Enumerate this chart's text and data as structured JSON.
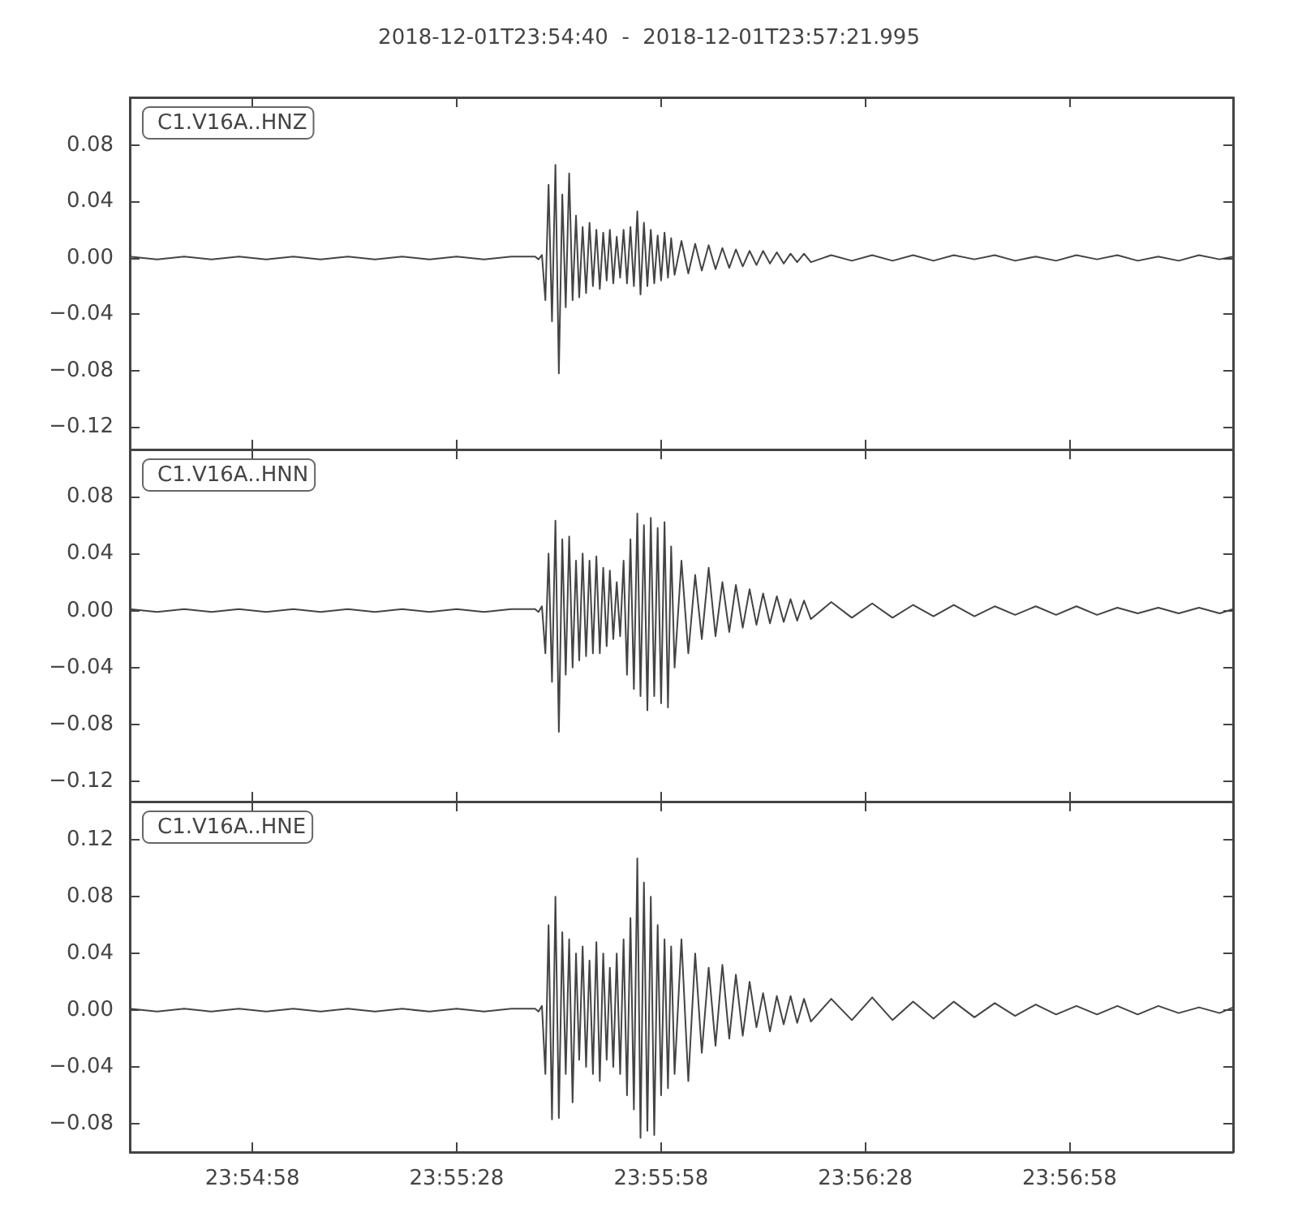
{
  "chart_data": [
    {
      "type": "line",
      "title": "2018-12-01T23:54:40  -  2018-12-01T23:57:21.995",
      "legend": "top left",
      "grid": false,
      "marker": "none",
      "line_style": "solid",
      "tick_labels": "y",
      "x": [
        23.91111,
        23.91222,
        23.91333,
        23.91444,
        23.91556,
        23.91667,
        23.91778,
        23.91889,
        23.92,
        23.92111,
        23.92222,
        23.92333,
        23.92444,
        23.92556,
        23.92667,
        23.92764,
        23.92778,
        23.92792,
        23.92806,
        23.92819,
        23.92833,
        23.92847,
        23.92861,
        23.92875,
        23.92889,
        23.92903,
        23.92917,
        23.92931,
        23.92944,
        23.92958,
        23.92972,
        23.92986,
        23.93,
        23.93014,
        23.93028,
        23.93042,
        23.93056,
        23.93069,
        23.93083,
        23.93097,
        23.93111,
        23.93125,
        23.93139,
        23.93153,
        23.93167,
        23.93181,
        23.93194,
        23.93208,
        23.93222,
        23.93236,
        23.9325,
        23.93264,
        23.93278,
        23.93292,
        23.93306,
        23.93319,
        23.93333,
        23.93361,
        23.93389,
        23.93417,
        23.93444,
        23.93472,
        23.935,
        23.93528,
        23.93556,
        23.93583,
        23.93611,
        23.93639,
        23.93667,
        23.93694,
        23.93722,
        23.9375,
        23.93778,
        23.93806,
        23.93833,
        23.93861,
        23.93889,
        23.93972,
        23.94056,
        23.94139,
        23.94222,
        23.94306,
        23.94389,
        23.94472,
        23.94556,
        23.94639,
        23.94722,
        23.94806,
        23.94889,
        23.94972,
        23.95056,
        23.95139,
        23.95222,
        23.95306,
        23.95389,
        23.95472,
        23.95556,
        23.95611
      ],
      "xlim": [
        23.91111,
        23.95611
      ],
      "xticks": [
        {
          "value": 23.91611,
          "label": null
        },
        {
          "value": 23.92444,
          "label": null
        },
        {
          "value": 23.93278,
          "label": null
        },
        {
          "value": 23.94111,
          "label": null
        },
        {
          "value": 23.94944,
          "label": null
        }
      ],
      "ylim": [
        -0.136,
        0.114
      ],
      "yticks": [
        {
          "value": -0.12,
          "label": "−0.12"
        },
        {
          "value": -0.08,
          "label": "−0.08"
        },
        {
          "value": -0.04,
          "label": "−0.04"
        },
        {
          "value": 0,
          "label": "0.00"
        },
        0.04,
        0.08
      ],
      "series": [
        {
          "name": "C1.V16A..HNZ",
          "color": "#444444",
          "values": [
            0.001,
            -0.001,
            0.001,
            -0.001,
            0.001,
            -0.001,
            0.001,
            -0.001,
            0.001,
            -0.001,
            0.001,
            -0.001,
            0.001,
            -0.001,
            0.001,
            0.001,
            -0.001,
            0.002,
            -0.03,
            0.052,
            -0.045,
            0.066,
            -0.082,
            0.045,
            -0.035,
            0.06,
            -0.03,
            0.03,
            -0.028,
            0.022,
            -0.025,
            0.025,
            -0.02,
            0.02,
            -0.022,
            0.018,
            -0.016,
            0.02,
            -0.018,
            0.015,
            -0.014,
            0.02,
            -0.018,
            0.022,
            -0.02,
            0.033,
            -0.026,
            0.025,
            -0.02,
            0.02,
            -0.018,
            0.016,
            -0.016,
            0.018,
            -0.014,
            0.014,
            -0.012,
            0.012,
            -0.011,
            0.01,
            -0.009,
            0.009,
            -0.008,
            0.007,
            -0.007,
            0.006,
            -0.006,
            0.005,
            -0.005,
            0.005,
            -0.004,
            0.004,
            -0.004,
            0.003,
            -0.003,
            0.003,
            -0.003,
            0.002,
            -0.002,
            0.002,
            -0.002,
            0.002,
            -0.002,
            0.002,
            -0.001,
            0.002,
            -0.002,
            0.001,
            -0.002,
            0.002,
            -0.001,
            0.002,
            -0.002,
            0.001,
            -0.002,
            0.002,
            -0.001,
            0.001
          ]
        }
      ]
    },
    {
      "type": "line",
      "legend": "top left",
      "grid": false,
      "marker": "none",
      "line_style": "solid",
      "tick_labels": "y",
      "x": [
        23.91111,
        23.91222,
        23.91333,
        23.91444,
        23.91556,
        23.91667,
        23.91778,
        23.91889,
        23.92,
        23.92111,
        23.92222,
        23.92333,
        23.92444,
        23.92556,
        23.92667,
        23.92764,
        23.92778,
        23.92792,
        23.92806,
        23.92819,
        23.92833,
        23.92847,
        23.92861,
        23.92875,
        23.92889,
        23.92903,
        23.92917,
        23.92931,
        23.92944,
        23.92958,
        23.92972,
        23.92986,
        23.93,
        23.93014,
        23.93028,
        23.93042,
        23.93056,
        23.93069,
        23.93083,
        23.93097,
        23.93111,
        23.93125,
        23.93139,
        23.93153,
        23.93167,
        23.93181,
        23.93194,
        23.93208,
        23.93222,
        23.93236,
        23.9325,
        23.93264,
        23.93278,
        23.93292,
        23.93306,
        23.93319,
        23.93333,
        23.93361,
        23.93389,
        23.93417,
        23.93444,
        23.93472,
        23.935,
        23.93528,
        23.93556,
        23.93583,
        23.93611,
        23.93639,
        23.93667,
        23.93694,
        23.93722,
        23.9375,
        23.93778,
        23.93806,
        23.93833,
        23.93861,
        23.93889,
        23.93972,
        23.94056,
        23.94139,
        23.94222,
        23.94306,
        23.94389,
        23.94472,
        23.94556,
        23.94639,
        23.94722,
        23.94806,
        23.94889,
        23.94972,
        23.95056,
        23.95139,
        23.95222,
        23.95306,
        23.95389,
        23.95472,
        23.95556,
        23.95611
      ],
      "xlim": [
        23.91111,
        23.95611
      ],
      "xticks": [
        {
          "value": 23.91611,
          "label": null
        },
        {
          "value": 23.92444,
          "label": null
        },
        {
          "value": 23.93278,
          "label": null
        },
        {
          "value": 23.94111,
          "label": null
        },
        {
          "value": 23.94944,
          "label": null
        }
      ],
      "ylim": [
        -0.134,
        0.113
      ],
      "yticks": [
        {
          "value": -0.12,
          "label": "−0.12"
        },
        {
          "value": -0.08,
          "label": "−0.08"
        },
        {
          "value": -0.04,
          "label": "−0.04"
        },
        {
          "value": 0,
          "label": "0.00"
        },
        0.04,
        0.08
      ],
      "series": [
        {
          "name": "C1.V16A..HNN",
          "color": "#444444",
          "values": [
            0.001,
            -0.001,
            0.001,
            -0.001,
            0.001,
            -0.001,
            0.001,
            -0.001,
            0.001,
            -0.001,
            0.001,
            -0.001,
            0.001,
            -0.001,
            0.001,
            0.001,
            -0.001,
            0.003,
            -0.03,
            0.04,
            -0.05,
            0.063,
            -0.085,
            0.05,
            -0.045,
            0.052,
            -0.04,
            0.035,
            -0.035,
            0.04,
            -0.032,
            0.035,
            -0.03,
            0.038,
            -0.03,
            0.03,
            -0.025,
            0.028,
            -0.02,
            0.02,
            -0.018,
            0.035,
            -0.045,
            0.05,
            -0.055,
            0.068,
            -0.06,
            0.06,
            -0.07,
            0.065,
            -0.06,
            0.058,
            -0.065,
            0.062,
            -0.068,
            0.045,
            -0.04,
            0.035,
            -0.03,
            0.025,
            -0.02,
            0.03,
            -0.018,
            0.02,
            -0.015,
            0.018,
            -0.012,
            0.015,
            -0.01,
            0.012,
            -0.009,
            0.01,
            -0.008,
            0.008,
            -0.007,
            0.007,
            -0.006,
            0.006,
            -0.005,
            0.005,
            -0.005,
            0.004,
            -0.004,
            0.004,
            -0.004,
            0.003,
            -0.003,
            0.003,
            -0.003,
            0.003,
            -0.003,
            0.002,
            -0.002,
            0.002,
            -0.002,
            0.002,
            -0.002,
            0.001
          ]
        }
      ]
    },
    {
      "type": "line",
      "legend": "top left",
      "grid": false,
      "marker": "none",
      "line_style": "solid",
      "x": [
        23.91111,
        23.91222,
        23.91333,
        23.91444,
        23.91556,
        23.91667,
        23.91778,
        23.91889,
        23.92,
        23.92111,
        23.92222,
        23.92333,
        23.92444,
        23.92556,
        23.92667,
        23.92764,
        23.92778,
        23.92792,
        23.92806,
        23.92819,
        23.92833,
        23.92847,
        23.92861,
        23.92875,
        23.92889,
        23.92903,
        23.92917,
        23.92931,
        23.92944,
        23.92958,
        23.92972,
        23.92986,
        23.93,
        23.93014,
        23.93028,
        23.93042,
        23.93056,
        23.93069,
        23.93083,
        23.93097,
        23.93111,
        23.93125,
        23.93139,
        23.93153,
        23.93167,
        23.93181,
        23.93194,
        23.93208,
        23.93222,
        23.93236,
        23.9325,
        23.93264,
        23.93278,
        23.93292,
        23.93306,
        23.93319,
        23.93333,
        23.93361,
        23.93389,
        23.93417,
        23.93444,
        23.93472,
        23.935,
        23.93528,
        23.93556,
        23.93583,
        23.93611,
        23.93639,
        23.93667,
        23.93694,
        23.93722,
        23.9375,
        23.93778,
        23.93806,
        23.93833,
        23.93861,
        23.93889,
        23.93972,
        23.94056,
        23.94139,
        23.94222,
        23.94306,
        23.94389,
        23.94472,
        23.94556,
        23.94639,
        23.94722,
        23.94806,
        23.94889,
        23.94972,
        23.95056,
        23.95139,
        23.95222,
        23.95306,
        23.95389,
        23.95472,
        23.95556,
        23.95611
      ],
      "xlim": [
        23.91111,
        23.95611
      ],
      "xticks": [
        {
          "value": 23.91611,
          "label": "23:54:58"
        },
        {
          "value": 23.92444,
          "label": "23:55:28"
        },
        {
          "value": 23.93278,
          "label": "23:55:58"
        },
        {
          "value": 23.94111,
          "label": "23:56:28"
        },
        {
          "value": 23.94944,
          "label": "23:56:58"
        }
      ],
      "ylim": [
        -0.1,
        0.147
      ],
      "yticks": [
        {
          "value": -0.08,
          "label": "−0.08"
        },
        {
          "value": -0.04,
          "label": "−0.04"
        },
        {
          "value": 0,
          "label": "0.00"
        },
        0.04,
        0.08,
        0.12
      ],
      "series": [
        {
          "name": "C1.V16A..HNE",
          "color": "#444444",
          "values": [
            0.001,
            -0.001,
            0.001,
            -0.001,
            0.001,
            -0.001,
            0.001,
            -0.001,
            0.001,
            -0.001,
            0.001,
            -0.001,
            0.001,
            -0.001,
            0.001,
            0.001,
            -0.001,
            0.003,
            -0.045,
            0.06,
            -0.077,
            0.08,
            -0.076,
            0.055,
            -0.045,
            0.05,
            -0.065,
            0.04,
            -0.035,
            0.045,
            -0.04,
            0.035,
            -0.045,
            0.048,
            -0.05,
            0.04,
            -0.035,
            0.03,
            -0.04,
            0.04,
            -0.045,
            0.05,
            -0.06,
            0.065,
            -0.07,
            0.107,
            -0.09,
            0.09,
            -0.085,
            0.08,
            -0.088,
            0.06,
            -0.06,
            0.05,
            -0.055,
            0.045,
            -0.045,
            0.05,
            -0.05,
            0.04,
            -0.03,
            0.03,
            -0.025,
            0.032,
            -0.02,
            0.025,
            -0.018,
            0.02,
            -0.012,
            0.012,
            -0.015,
            0.01,
            -0.01,
            0.01,
            -0.009,
            0.008,
            -0.008,
            0.008,
            -0.007,
            0.009,
            -0.007,
            0.006,
            -0.006,
            0.006,
            -0.005,
            0.005,
            -0.004,
            0.004,
            -0.003,
            0.003,
            -0.003,
            0.003,
            -0.003,
            0.003,
            -0.002,
            0.002,
            -0.002,
            0.002
          ]
        }
      ]
    }
  ]
}
